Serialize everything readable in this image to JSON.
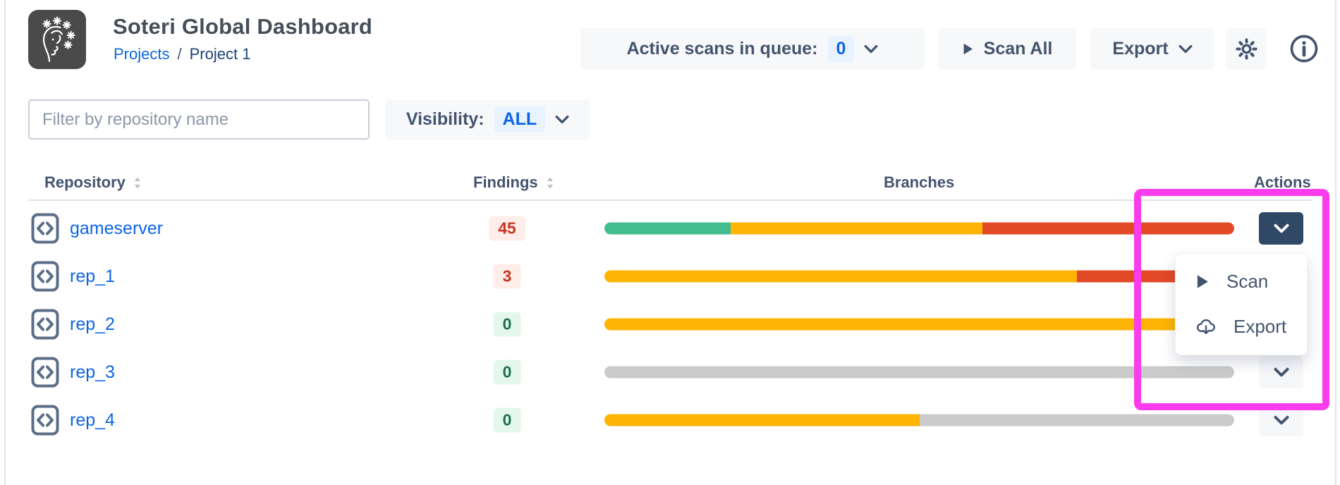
{
  "app": {
    "title": "Soteri Global Dashboard"
  },
  "breadcrumb": {
    "projects": "Projects",
    "separator": "/",
    "current": "Project 1"
  },
  "toolbar": {
    "queue_label": "Active scans in queue:",
    "queue_count": "0",
    "scan_all": "Scan All",
    "export": "Export"
  },
  "filters": {
    "search_placeholder": "Filter by repository name",
    "visibility_label": "Visibility:",
    "visibility_value": "ALL"
  },
  "table": {
    "columns": [
      "Repository",
      "Findings",
      "Branches",
      "Actions"
    ],
    "rows": [
      {
        "name": "gameserver",
        "findings": "45",
        "status": "danger",
        "menu_open": true,
        "bar": [
          {
            "color": "green",
            "pct": 20
          },
          {
            "color": "yellow",
            "pct": 40
          },
          {
            "color": "red",
            "pct": 40
          }
        ]
      },
      {
        "name": "rep_1",
        "findings": "3",
        "status": "danger",
        "bar": [
          {
            "color": "yellow",
            "pct": 75
          },
          {
            "color": "red",
            "pct": 25
          }
        ]
      },
      {
        "name": "rep_2",
        "findings": "0",
        "status": "success",
        "bar": [
          {
            "color": "yellow",
            "pct": 100
          }
        ]
      },
      {
        "name": "rep_3",
        "findings": "0",
        "status": "success",
        "bar": [
          {
            "color": "gray",
            "pct": 100
          }
        ]
      },
      {
        "name": "rep_4",
        "findings": "0",
        "status": "success",
        "bar": [
          {
            "color": "yellow",
            "pct": 50
          },
          {
            "color": "gray",
            "pct": 50
          }
        ]
      }
    ]
  },
  "action_menu": {
    "items": [
      {
        "icon": "play-icon",
        "label": "Scan"
      },
      {
        "icon": "export-download-icon",
        "label": "Export"
      }
    ]
  },
  "colors": {
    "accent_blue": "#0C66E4",
    "slate_text": "#44546F",
    "bar": {
      "green": "#44BD8E",
      "yellow": "#FDB405",
      "red": "#E24927",
      "gray": "#CBCBCB"
    },
    "badge_danger_text": "#CA3521",
    "badge_danger_bg": "#FFEDE9",
    "badge_success_text": "#216E4E",
    "badge_success_bg": "#E3F7EC",
    "open_button_bg": "#2E4866",
    "annotation_highlight": "#FB3CEC"
  }
}
